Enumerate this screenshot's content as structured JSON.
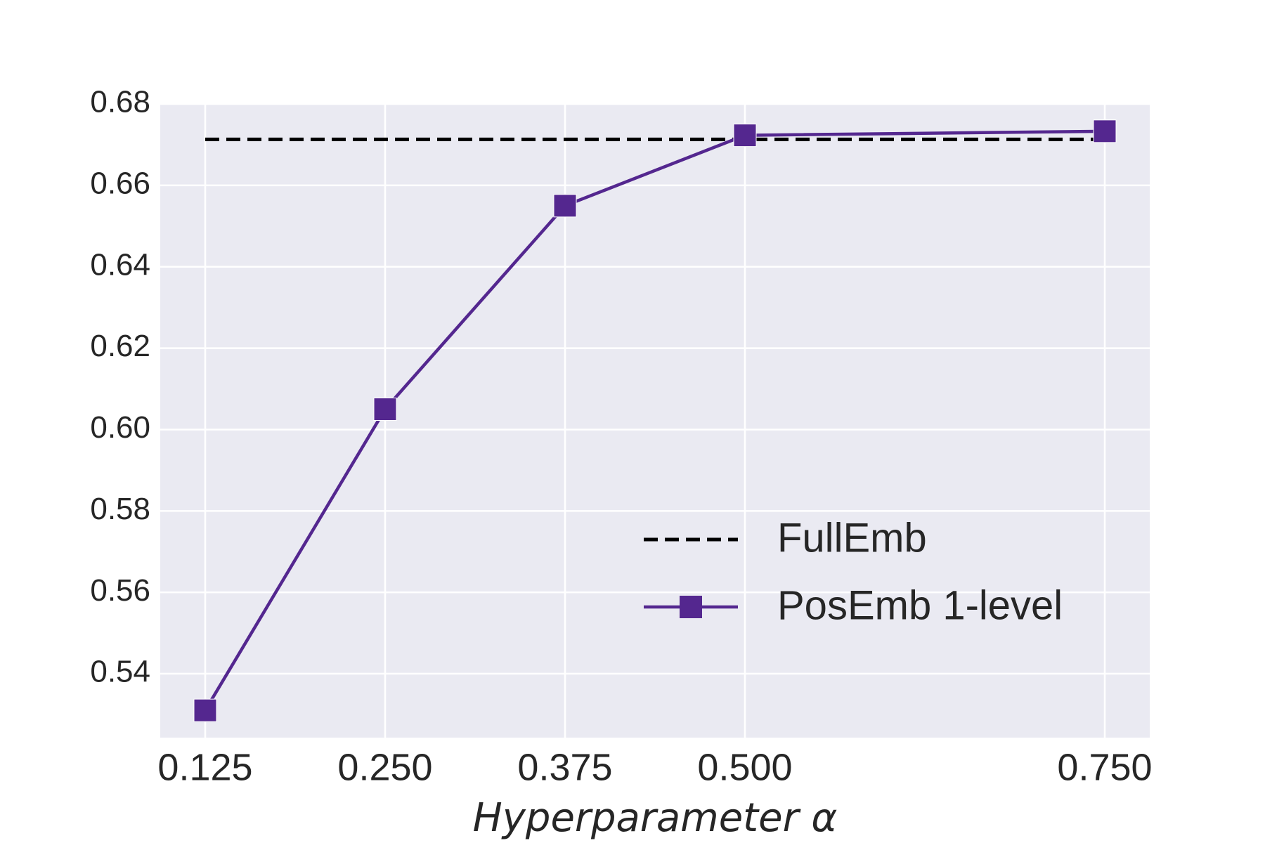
{
  "chart_data": {
    "type": "line",
    "x_label": "Hyperparameter α",
    "x": [
      0.125,
      0.25,
      0.375,
      0.5,
      0.75
    ],
    "series": [
      {
        "name": "FullEmb",
        "color": "#000000",
        "dashed": true,
        "marker": "none",
        "values": [
          0.6713,
          0.6713,
          0.6713,
          0.6713,
          0.6713
        ]
      },
      {
        "name": "PosEmb 1-level",
        "color": "#54278f",
        "dashed": false,
        "marker": "square",
        "values": [
          0.531,
          0.605,
          0.655,
          0.6723,
          0.6733
        ]
      }
    ],
    "xlim": [
      0.09375,
      0.78125
    ],
    "xticks": [
      {
        "value": 0.125,
        "label": "0.125"
      },
      {
        "value": 0.25,
        "label": "0.250"
      },
      {
        "value": 0.375,
        "label": "0.375"
      },
      {
        "value": 0.5,
        "label": "0.500"
      },
      {
        "value": 0.75,
        "label": "0.750"
      }
    ],
    "ylim": [
      0.5243,
      0.68
    ],
    "yticks": [
      0.54,
      0.56,
      0.58,
      {
        "value": 0.6,
        "label": "0.60"
      },
      0.62,
      0.64,
      0.66,
      0.68
    ],
    "grid": true,
    "legend": "lower right"
  }
}
